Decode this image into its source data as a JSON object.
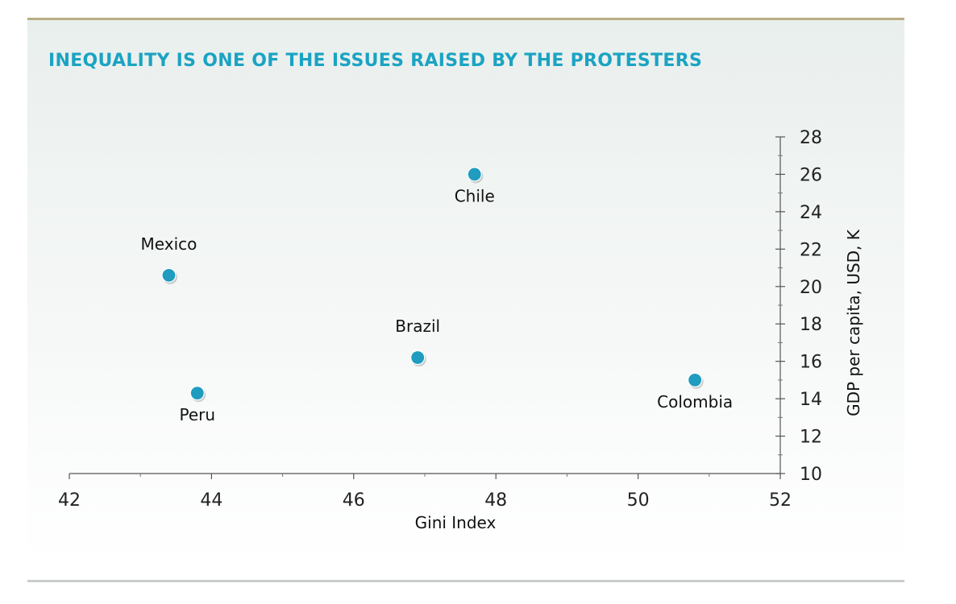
{
  "title": "INEQUALITY IS ONE OF THE ISSUES RAISED BY THE PROTESTERS",
  "colors": {
    "accent": "#1aa3c3",
    "marker": "#1f9cc0",
    "top_rule": "#b8ad84"
  },
  "chart_data": {
    "type": "scatter",
    "title": "INEQUALITY IS ONE OF THE ISSUES RAISED BY THE PROTESTERS",
    "xlabel": "Gini Index",
    "ylabel": "GDP per capita, USD, K",
    "xlim": [
      42,
      52
    ],
    "ylim": [
      10,
      28
    ],
    "xticks": [
      42,
      44,
      46,
      48,
      50,
      52
    ],
    "yticks": [
      10,
      12,
      14,
      16,
      18,
      20,
      22,
      24,
      26,
      28
    ],
    "y_axis_side": "right",
    "grid": false,
    "points": [
      {
        "label": "Chile",
        "x": 47.7,
        "y": 26.0,
        "label_pos": "below"
      },
      {
        "label": "Mexico",
        "x": 43.4,
        "y": 20.6,
        "label_pos": "above"
      },
      {
        "label": "Brazil",
        "x": 46.9,
        "y": 16.2,
        "label_pos": "above"
      },
      {
        "label": "Peru",
        "x": 43.8,
        "y": 14.3,
        "label_pos": "below"
      },
      {
        "label": "Colombia",
        "x": 50.8,
        "y": 15.0,
        "label_pos": "below"
      }
    ]
  }
}
